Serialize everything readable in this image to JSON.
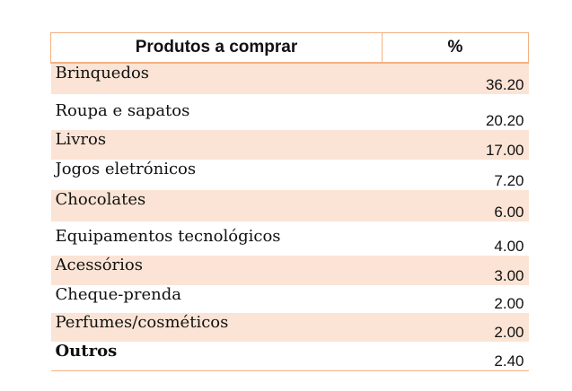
{
  "table": {
    "headers": [
      "Produtos a comprar",
      "%"
    ],
    "rows": [
      {
        "product": "Brinquedos",
        "percent": "36.20"
      },
      {
        "product": "Roupa e sapatos",
        "percent": "20.20"
      },
      {
        "product": "Livros",
        "percent": "17.00"
      },
      {
        "product": "Jogos eletrónicos",
        "percent": "7.20"
      },
      {
        "product": "Chocolates",
        "percent": "6.00"
      },
      {
        "product": "Equipamentos tecnológicos",
        "percent": "4.00"
      },
      {
        "product": "Acessórios",
        "percent": "3.00"
      },
      {
        "product": "Cheque-prenda",
        "percent": "2.00"
      },
      {
        "product": "Perfumes/cosméticos",
        "percent": "2.00"
      },
      {
        "product": "Outros",
        "percent": "2.40"
      }
    ]
  },
  "colors": {
    "border": "#f4b183",
    "stripe": "#fbe4d5"
  }
}
